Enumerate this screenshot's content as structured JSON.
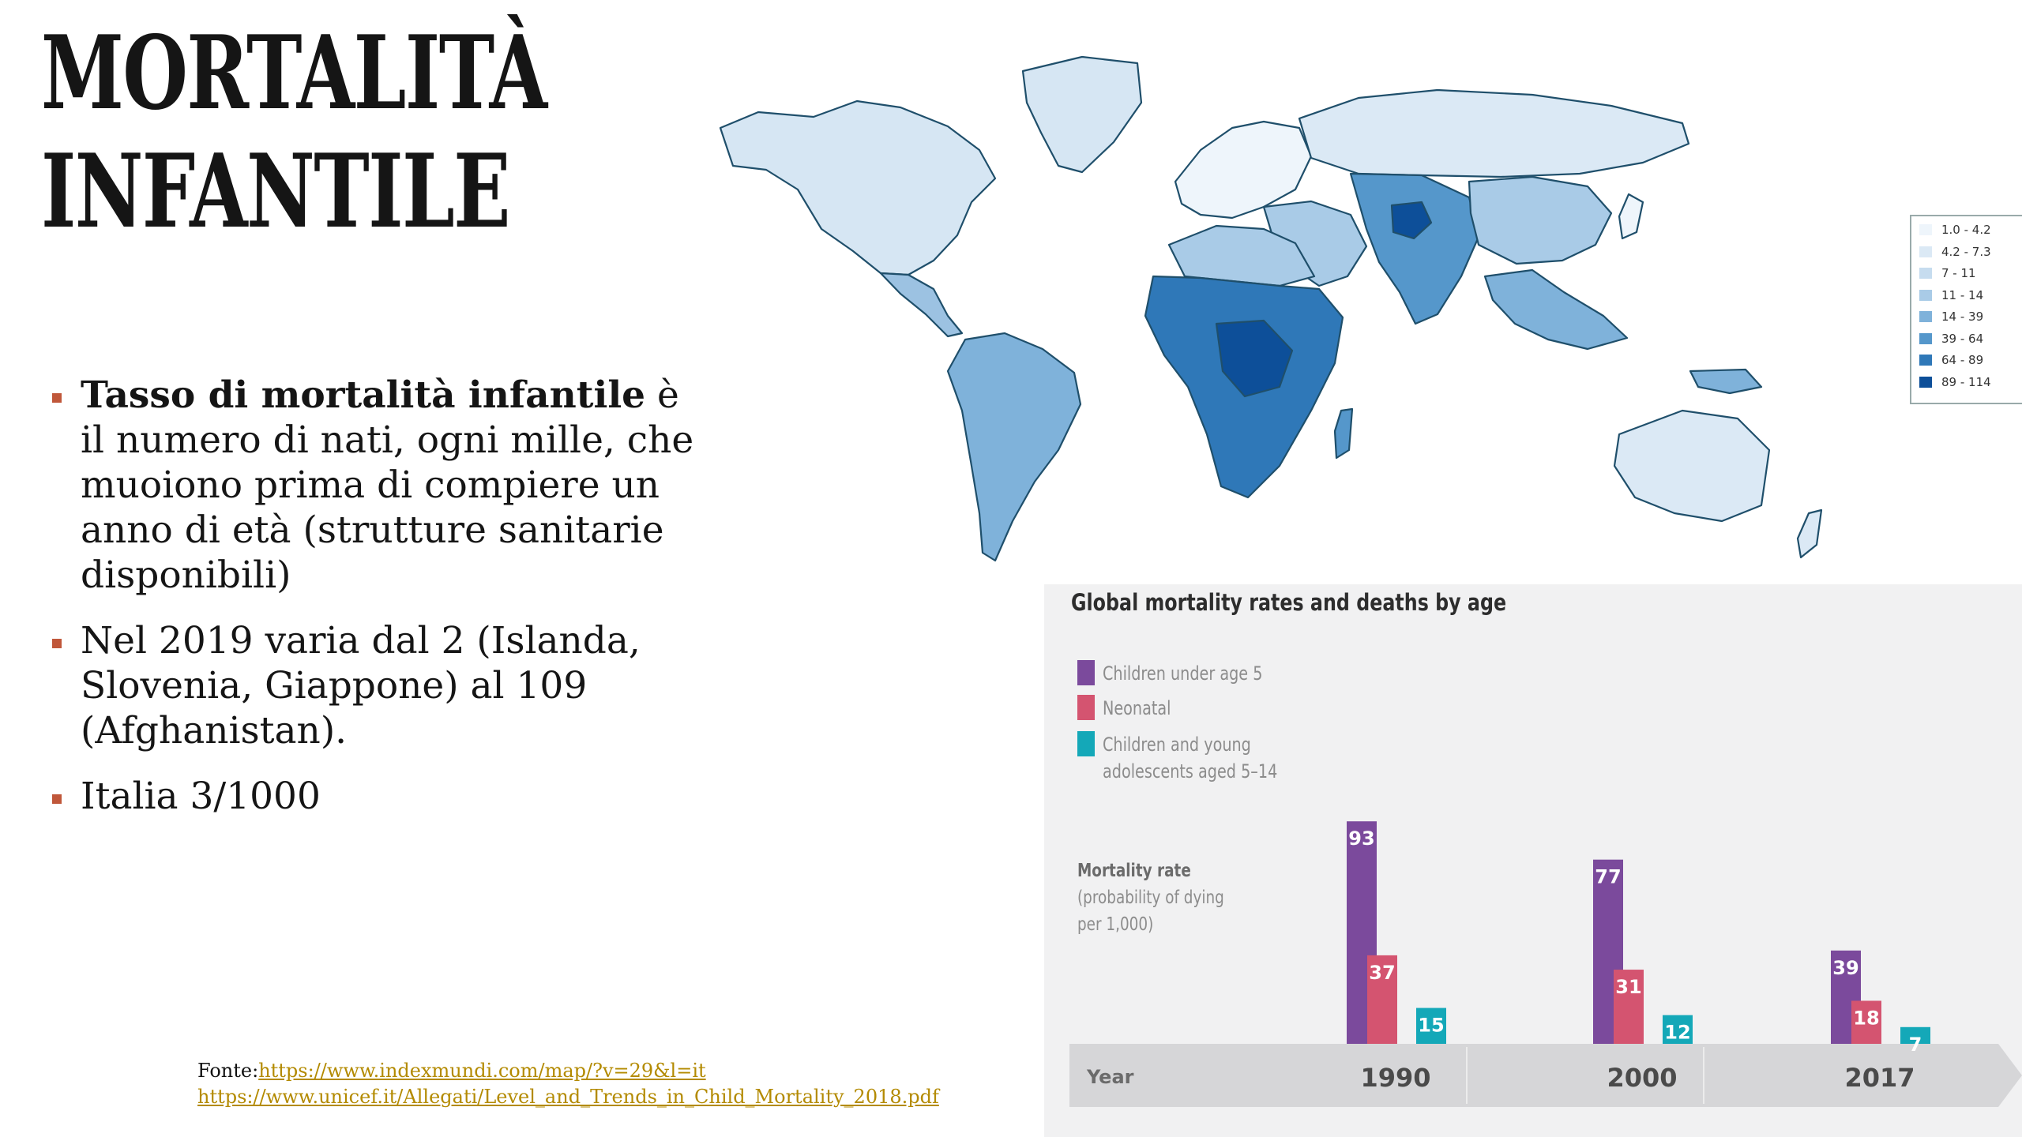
{
  "slide": {
    "title_line1": "MORTALITÀ",
    "title_line2": "INFANTILE",
    "bullets": [
      {
        "bold": "Tasso di mortalità infantile",
        "text": " è il numero di nati, ogni mille, che muoiono prima di compiere un anno di età (strutture sanitarie disponibili)"
      },
      {
        "bold": "",
        "text": "Nel 2019 varia dal 2 (Islanda, Slovenia, Giappone) al 109 (Afghanistan)."
      },
      {
        "bold": "",
        "text": "Italia 3/1000"
      }
    ],
    "source_label": "Fonte:",
    "source_link1": "https://www.indexmundi.com/map/?v=29&l=it",
    "source_link2": "https://www.unicef.it/Allegati/Level_and_Trends_in_Child_Mortality_2018.pdf",
    "accent_color": "#c0573a"
  },
  "map_legend": {
    "ranges": [
      "1.0 - 4.2",
      "4.2 - 7.3",
      "7 - 11",
      "11 - 14",
      "14 - 39",
      "39 - 64",
      "64 - 89",
      "89 - 114"
    ],
    "colors": [
      "#eef5fb",
      "#dbe9f5",
      "#c6dcef",
      "#a9cbe7",
      "#7fb2da",
      "#5597cb",
      "#2f78b8",
      "#0d4f99"
    ]
  },
  "chart_data": {
    "type": "bar",
    "title": "Global mortality rates and deaths by age",
    "xlabel": "Year",
    "ylabel": "Mortality rate",
    "ylabel_sub": [
      "(probability of dying",
      "per 1,000)"
    ],
    "categories": [
      "1990",
      "2000",
      "2017"
    ],
    "series": [
      {
        "name": "Children under age 5",
        "values": [
          93,
          77,
          39
        ],
        "color": "#7b4a9c"
      },
      {
        "name": "Neonatal",
        "values": [
          37,
          31,
          18
        ],
        "color": "#d45470"
      },
      {
        "name": "Children and young adolescents aged 5–14",
        "name_lines": [
          "Children and young",
          "adolescents aged 5–14"
        ],
        "values": [
          15,
          12,
          7
        ],
        "color": "#14a8b8"
      }
    ],
    "ylim": [
      0,
      100
    ],
    "legend_position": "top-left",
    "grid": false
  }
}
